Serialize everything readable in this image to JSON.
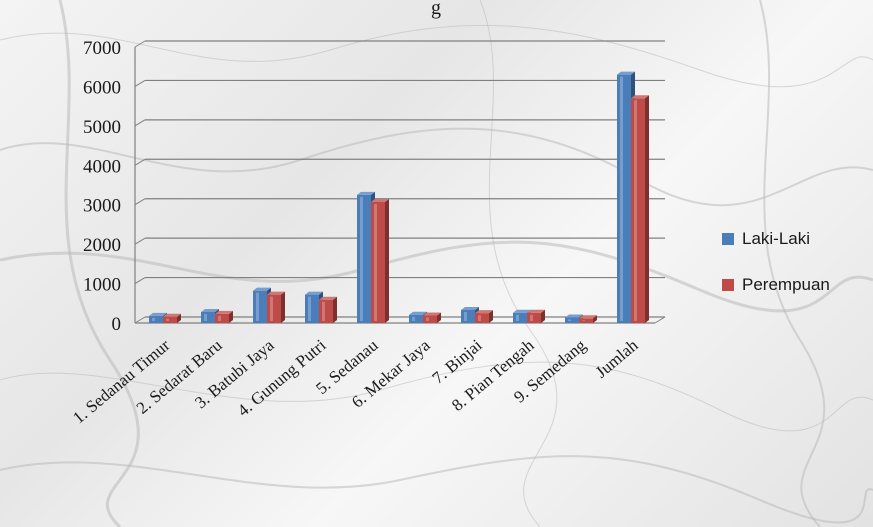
{
  "chart_data": {
    "type": "bar",
    "title": "g",
    "xlabel": "",
    "ylabel": "",
    "ylim": [
      0,
      7000
    ],
    "yticks": [
      0,
      1000,
      2000,
      3000,
      4000,
      5000,
      6000,
      7000
    ],
    "categories": [
      "1.  Sedanau Timur",
      "2.  Sedarat Baru",
      "3.  Batubi Jaya",
      "4.  Gunung Putri",
      "5.  Sedanau",
      "6.  Mekar Jaya",
      "7.  Binjai",
      "8.  Pian Tengah",
      "9.  Semedang",
      "Jumlah"
    ],
    "series": [
      {
        "name": "Laki-Laki",
        "color": "#4a7ebb",
        "values": [
          180,
          280,
          820,
          720,
          3250,
          210,
          330,
          260,
          140,
          6300
        ]
      },
      {
        "name": "Perempuan",
        "color": "#be4b48",
        "values": [
          160,
          230,
          720,
          590,
          3070,
          190,
          250,
          260,
          120,
          5700
        ]
      }
    ],
    "legend_position": "right",
    "grid": true,
    "style": "3d-clustered-column"
  }
}
